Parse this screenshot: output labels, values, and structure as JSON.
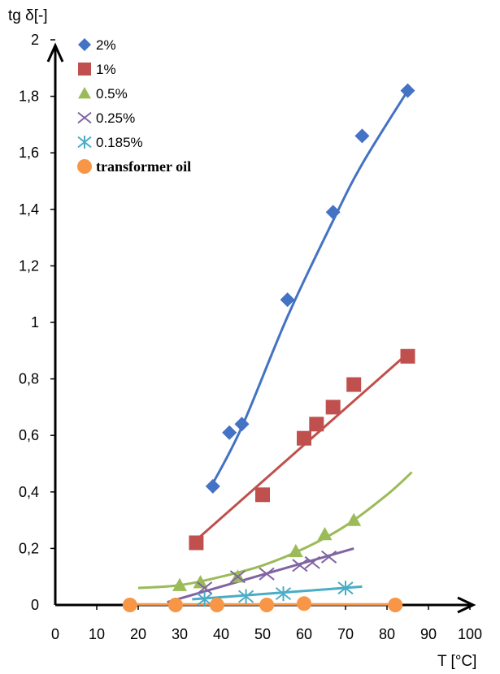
{
  "chart_data": {
    "type": "scatter",
    "title": "",
    "xlabel": "T [°C]",
    "ylabel": "tg δ[-]",
    "xlim": [
      0,
      100
    ],
    "ylim": [
      0,
      2
    ],
    "xticks": [
      0,
      10,
      20,
      30,
      40,
      50,
      60,
      70,
      80,
      90,
      100
    ],
    "yticks": [
      0,
      0.2,
      0.4,
      0.6,
      0.8,
      1,
      1.2,
      1.4,
      1.6,
      1.8,
      2
    ],
    "xtick_labels": [
      "0",
      "10",
      "20",
      "30",
      "40",
      "50",
      "60",
      "70",
      "80",
      "90",
      "100"
    ],
    "ytick_labels": [
      "0",
      "0,2",
      "0,4",
      "0,6",
      "0,8",
      "1",
      "1,2",
      "1,4",
      "1,6",
      "1,8",
      "2"
    ],
    "grid": false,
    "legend_position": "top-left",
    "series": [
      {
        "name": "2%",
        "marker": "diamond",
        "color": "#4472C4",
        "x": [
          38,
          42,
          45,
          56,
          67,
          74,
          85
        ],
        "y": [
          0.42,
          0.61,
          0.64,
          1.08,
          1.39,
          1.66,
          1.82
        ],
        "trend_x": [
          38,
          45,
          56,
          67,
          74,
          85
        ],
        "trend_y": [
          0.43,
          0.63,
          1.02,
          1.36,
          1.56,
          1.82
        ]
      },
      {
        "name": "1%",
        "marker": "square",
        "color": "#C0504D",
        "x": [
          34,
          50,
          60,
          63,
          67,
          72,
          85
        ],
        "y": [
          0.22,
          0.39,
          0.59,
          0.64,
          0.7,
          0.78,
          0.88
        ],
        "trend_x": [
          34,
          85
        ],
        "trend_y": [
          0.23,
          0.89
        ]
      },
      {
        "name": "0.5%",
        "marker": "triangle",
        "color": "#9BBB59",
        "x": [
          30,
          35,
          44,
          58,
          65,
          72
        ],
        "y": [
          0.07,
          0.08,
          0.1,
          0.19,
          0.25,
          0.3
        ],
        "trend_x": [
          20,
          30,
          40,
          50,
          60,
          70,
          80,
          86
        ],
        "trend_y": [
          0.06,
          0.07,
          0.1,
          0.14,
          0.2,
          0.28,
          0.39,
          0.47
        ]
      },
      {
        "name": "0.25%",
        "marker": "x",
        "color": "#8064A2",
        "x": [
          36,
          44,
          51,
          59,
          62,
          66
        ],
        "y": [
          0.06,
          0.1,
          0.11,
          0.14,
          0.15,
          0.17
        ],
        "trend_x": [
          27,
          72
        ],
        "trend_y": [
          0.01,
          0.2
        ]
      },
      {
        "name": "0.185%",
        "marker": "star",
        "color": "#4BACC6",
        "x": [
          36,
          46,
          55,
          70
        ],
        "y": [
          0.02,
          0.03,
          0.04,
          0.06
        ],
        "trend_x": [
          33,
          74
        ],
        "trend_y": [
          0.02,
          0.065
        ]
      },
      {
        "name": "transformer oil",
        "marker": "circle",
        "color": "#F79646",
        "x": [
          18,
          29,
          39,
          51,
          60,
          82
        ],
        "y": [
          0,
          0,
          0,
          0,
          0.005,
          0
        ],
        "trend_x": [
          18,
          82
        ],
        "trend_y": [
          0.002,
          0.002
        ]
      }
    ]
  }
}
